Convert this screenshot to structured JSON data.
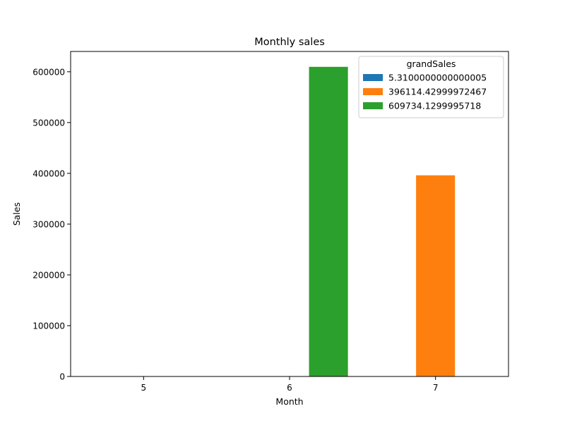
{
  "chart_data": {
    "type": "bar",
    "title": "Monthly sales",
    "xlabel": "Month",
    "ylabel": "Sales",
    "categories": [
      "5",
      "6",
      "7"
    ],
    "ylim": [
      0,
      640000
    ],
    "yticks": [
      0,
      100000,
      200000,
      300000,
      400000,
      500000,
      600000
    ],
    "ytick_labels": [
      "0",
      "100000",
      "200000",
      "300000",
      "400000",
      "500000",
      "600000"
    ],
    "legend_title": "grandSales",
    "legend_position": "upper-right",
    "grid": false,
    "series": [
      {
        "name": "5.3100000000000005",
        "color": "#1f77b4",
        "values": [
          5.31,
          0,
          0
        ]
      },
      {
        "name": "396114.42999972467",
        "color": "#ff7f0e",
        "values": [
          0,
          0,
          396114.43
        ]
      },
      {
        "name": "609734.1299995718",
        "color": "#2ca02c",
        "values": [
          0,
          609734.13,
          0
        ]
      }
    ]
  }
}
